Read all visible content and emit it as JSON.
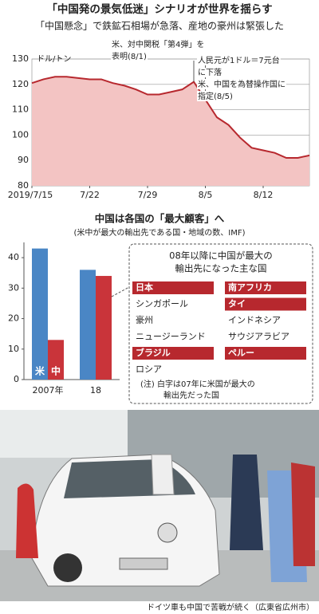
{
  "header": {
    "title": "「中国発の景気低迷」シナリオが世界を揺らす"
  },
  "chart_data": [
    {
      "type": "area",
      "title": "「中国懸念」で鉄鉱石相場が急落、産地の豪州は緊張した",
      "y_label": "ドル/トン",
      "categories": [
        "2019/7/15",
        null,
        null,
        null,
        null,
        "7/22",
        null,
        null,
        null,
        null,
        "7/29",
        null,
        null,
        null,
        null,
        "8/5",
        null,
        null,
        null,
        null,
        "8/12",
        null,
        null,
        null,
        null
      ],
      "values": [
        120.5,
        122,
        123,
        123,
        122.5,
        122,
        122,
        120.5,
        119.5,
        118,
        116,
        116,
        117,
        118,
        121,
        114,
        107,
        104,
        99,
        95,
        94,
        93,
        91,
        91,
        92
      ],
      "color": "#b7282e",
      "fill": "#f3c4c3",
      "ylim": [
        80,
        130
      ],
      "yticks": [
        80,
        90,
        100,
        110,
        120,
        130
      ],
      "grid": true,
      "annotations": [
        {
          "at": 14,
          "lines": [
            "米、対中関税「第4弾」を",
            "表明(8/1)"
          ]
        },
        {
          "at": 15,
          "lines": [
            "人民元が1ドル＝7元台",
            "に下落",
            "米、中国を為替操作国に",
            "指定(8/5)"
          ]
        }
      ]
    },
    {
      "type": "bar",
      "title": "中国は各国の「最大顧客」へ",
      "subtitle": "(米中が最大の輸出先である国・地域の数、IMF)",
      "categories": [
        "2007年",
        "18"
      ],
      "series": [
        {
          "name": "米",
          "color": "#4a86c5",
          "values": [
            43,
            36
          ]
        },
        {
          "name": "中",
          "color": "#c9343a",
          "values": [
            13,
            34
          ]
        }
      ],
      "ylim": [
        0,
        45
      ],
      "yticks": [
        0,
        10,
        20,
        30,
        40
      ]
    }
  ],
  "country_box": {
    "title": [
      "08年以降に中国が最大の",
      "輸出先になった主な国"
    ],
    "columns": [
      [
        {
          "name": "日本",
          "us_2007": true
        },
        {
          "name": "シンガポール",
          "us_2007": false
        },
        {
          "name": "豪州",
          "us_2007": false
        },
        {
          "name": "ニュージーランド",
          "us_2007": false
        },
        {
          "name": "ブラジル",
          "us_2007": true
        },
        {
          "name": "ロシア",
          "us_2007": false
        }
      ],
      [
        {
          "name": "南アフリカ",
          "us_2007": true
        },
        {
          "name": "タイ",
          "us_2007": true
        },
        {
          "name": "インドネシア",
          "us_2007": false
        },
        {
          "name": "サウジアラビア",
          "us_2007": false
        },
        {
          "name": "ペルー",
          "us_2007": true
        }
      ]
    ],
    "note": [
      "(注) 白字は07年に米国が最大の",
      "輸出先だった国"
    ]
  },
  "photo_caption": "ドイツ車も中国で苦戦が続く（広東省広州市）"
}
